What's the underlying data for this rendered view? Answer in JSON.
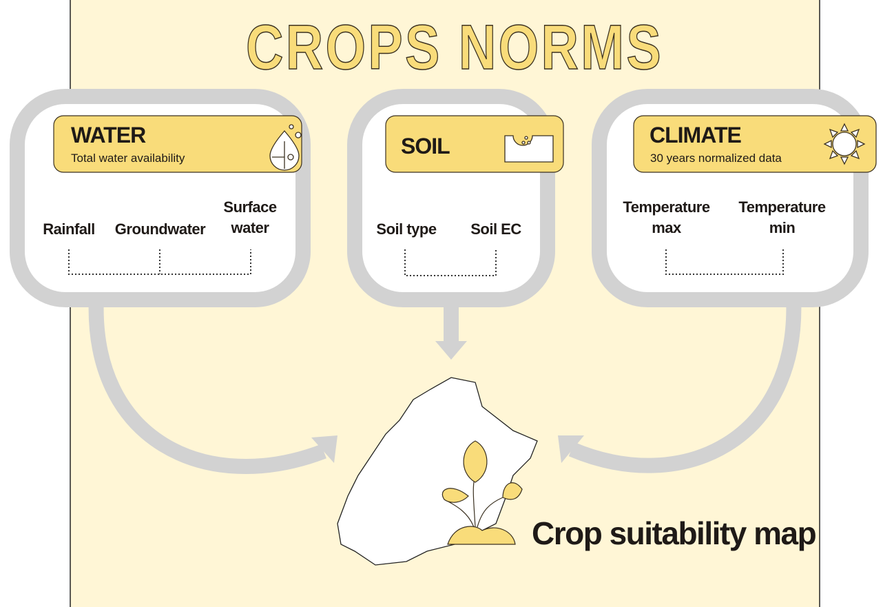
{
  "title": "CROPS NORMS",
  "cards": [
    {
      "title": "WATER",
      "subtitle": "Total water availability",
      "items": [
        "Rainfall",
        "Groundwater",
        "Surface water"
      ]
    },
    {
      "title": "SOIL",
      "items": [
        "Soil type",
        "Soil EC"
      ]
    },
    {
      "title": "CLIMATE",
      "subtitle": "30 years normalized data",
      "items": [
        "Temperature max",
        "Temperature min"
      ]
    }
  ],
  "output": "Crop suitability map"
}
